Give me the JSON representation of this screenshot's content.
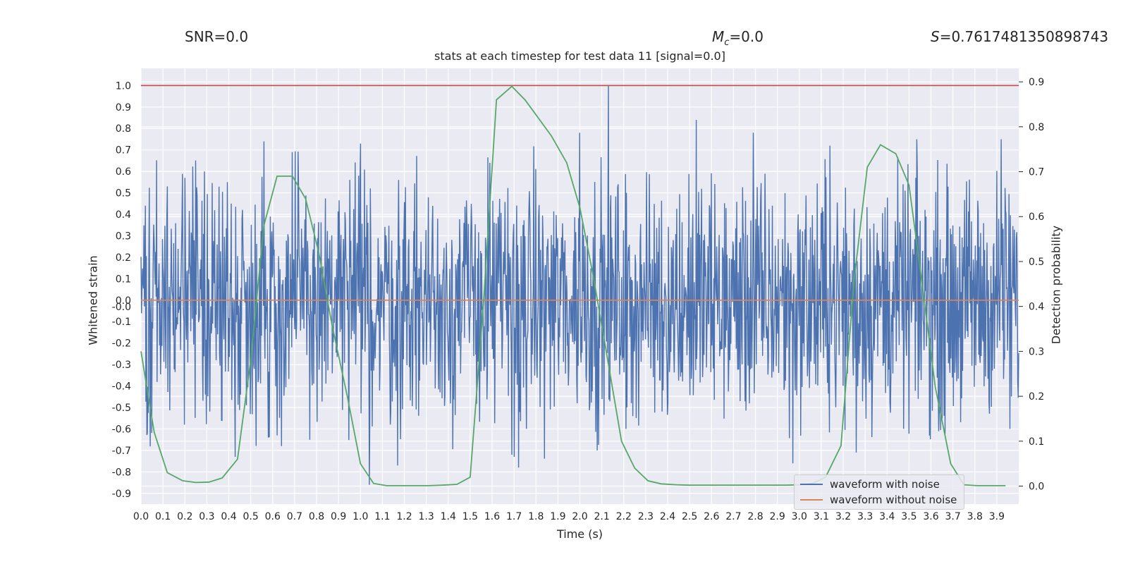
{
  "header": {
    "snr": "SNR=0.0",
    "mc": "Mc=0.0",
    "mc_symbol": "M",
    "mc_sub": "c",
    "mc_value": "=0.0",
    "s_symbol": "S",
    "s_value": "=0.7617481350898743"
  },
  "chart_data": {
    "type": "line",
    "title": "stats at each timestep for test data 11 [signal=0.0]",
    "xlabel": "Time (s)",
    "ylabel": "Whitened strain",
    "y2label": "Detection probability",
    "xlim": [
      0.0,
      4.0
    ],
    "ylim": [
      -0.95,
      1.08
    ],
    "y2lim": [
      -0.04,
      0.93
    ],
    "xticks": [
      "0.0",
      "0.1",
      "0.2",
      "0.3",
      "0.4",
      "0.5",
      "0.6",
      "0.7",
      "0.8",
      "0.9",
      "1.0",
      "1.1",
      "1.2",
      "1.3",
      "1.4",
      "1.5",
      "1.6",
      "1.7",
      "1.8",
      "1.9",
      "2.0",
      "2.1",
      "2.2",
      "2.3",
      "2.4",
      "2.5",
      "2.6",
      "2.7",
      "2.8",
      "2.9",
      "3.0",
      "3.1",
      "3.2",
      "3.3",
      "3.4",
      "3.5",
      "3.6",
      "3.7",
      "3.8",
      "3.9"
    ],
    "yticks": [
      "1.0",
      "0.9",
      "0.8",
      "0.7",
      "0.6",
      "0.5",
      "0.4",
      "0.3",
      "0.2",
      "0.1",
      "0.0",
      "-0.0",
      "-0.1",
      "-0.2",
      "-0.3",
      "-0.4",
      "-0.5",
      "-0.6",
      "-0.7",
      "-0.8",
      "-0.9"
    ],
    "y2ticks": [
      "0.9",
      "0.8",
      "0.7",
      "0.6",
      "0.5",
      "0.4",
      "0.3",
      "0.2",
      "0.1",
      "0.0"
    ],
    "threshold_line": {
      "value": 1.0,
      "color": "#c44e52"
    },
    "series": [
      {
        "name": "waveform with noise",
        "color": "#4c72b0",
        "axis": "left",
        "kind": "noise",
        "envelope": [
          -0.75,
          0.75
        ],
        "samples": 1800,
        "spikes": [
          {
            "x": 0.02,
            "y": 0.44
          },
          {
            "x": 0.03,
            "y": -0.62
          },
          {
            "x": 0.12,
            "y": 0.53
          },
          {
            "x": 0.29,
            "y": 0.6
          },
          {
            "x": 0.43,
            "y": 0.54
          },
          {
            "x": 0.43,
            "y": -0.73
          },
          {
            "x": 0.56,
            "y": 0.74
          },
          {
            "x": 0.58,
            "y": -0.64
          },
          {
            "x": 0.62,
            "y": -0.63
          },
          {
            "x": 0.64,
            "y": -0.68
          },
          {
            "x": 0.69,
            "y": 0.69
          },
          {
            "x": 0.77,
            "y": -0.65
          },
          {
            "x": 1.0,
            "y": 0.73
          },
          {
            "x": 1.04,
            "y": -0.86
          },
          {
            "x": 1.17,
            "y": -0.77
          },
          {
            "x": 1.59,
            "y": 0.64
          },
          {
            "x": 1.69,
            "y": -0.72
          },
          {
            "x": 1.7,
            "y": -0.73
          },
          {
            "x": 1.72,
            "y": -0.78
          },
          {
            "x": 2.0,
            "y": 0.78
          },
          {
            "x": 2.08,
            "y": -0.7
          },
          {
            "x": 2.13,
            "y": 1.0
          },
          {
            "x": 2.21,
            "y": -0.6
          },
          {
            "x": 2.53,
            "y": 0.84
          },
          {
            "x": 2.79,
            "y": 0.78
          },
          {
            "x": 2.97,
            "y": -0.76
          },
          {
            "x": 3.14,
            "y": 0.72
          },
          {
            "x": 3.26,
            "y": -0.71
          },
          {
            "x": 3.53,
            "y": 0.57
          },
          {
            "x": 3.92,
            "y": 0.75
          },
          {
            "x": 3.96,
            "y": -0.6
          }
        ]
      },
      {
        "name": "waveform without noise",
        "color": "#dd8452",
        "axis": "left",
        "x": [
          0.0,
          4.0
        ],
        "y": [
          0.0,
          0.0
        ]
      },
      {
        "name": "detection probability",
        "color": "#55a868",
        "axis": "right",
        "in_legend": false,
        "x": [
          0.0,
          0.06,
          0.12,
          0.19,
          0.25,
          0.31,
          0.37,
          0.44,
          0.5,
          0.56,
          0.62,
          0.69,
          0.75,
          0.81,
          0.87,
          0.94,
          1.0,
          1.06,
          1.12,
          1.19,
          1.25,
          1.31,
          1.37,
          1.44,
          1.5,
          1.56,
          1.62,
          1.69,
          1.75,
          1.81,
          1.87,
          1.94,
          2.0,
          2.06,
          2.12,
          2.19,
          2.25,
          2.31,
          2.37,
          2.44,
          2.5,
          2.56,
          2.62,
          2.69,
          2.75,
          2.81,
          2.87,
          2.94,
          3.0,
          3.06,
          3.12,
          3.19,
          3.25,
          3.31,
          3.37,
          3.44,
          3.5,
          3.56,
          3.62,
          3.69,
          3.75,
          3.81,
          3.87,
          3.94
        ],
        "y": [
          0.3,
          0.12,
          0.03,
          0.012,
          0.008,
          0.009,
          0.018,
          0.06,
          0.28,
          0.58,
          0.69,
          0.69,
          0.64,
          0.52,
          0.36,
          0.2,
          0.05,
          0.006,
          0.001,
          0.001,
          0.001,
          0.001,
          0.002,
          0.004,
          0.02,
          0.4,
          0.86,
          0.89,
          0.86,
          0.82,
          0.78,
          0.72,
          0.62,
          0.47,
          0.3,
          0.1,
          0.04,
          0.012,
          0.005,
          0.003,
          0.002,
          0.002,
          0.002,
          0.002,
          0.002,
          0.002,
          0.002,
          0.002,
          0.003,
          0.006,
          0.02,
          0.09,
          0.46,
          0.71,
          0.76,
          0.74,
          0.67,
          0.45,
          0.22,
          0.05,
          0.003,
          0.001,
          0.001,
          0.001
        ]
      }
    ],
    "legend": {
      "position": "lower-right",
      "entries": [
        "waveform with noise",
        "waveform without noise"
      ]
    },
    "grid": true
  }
}
